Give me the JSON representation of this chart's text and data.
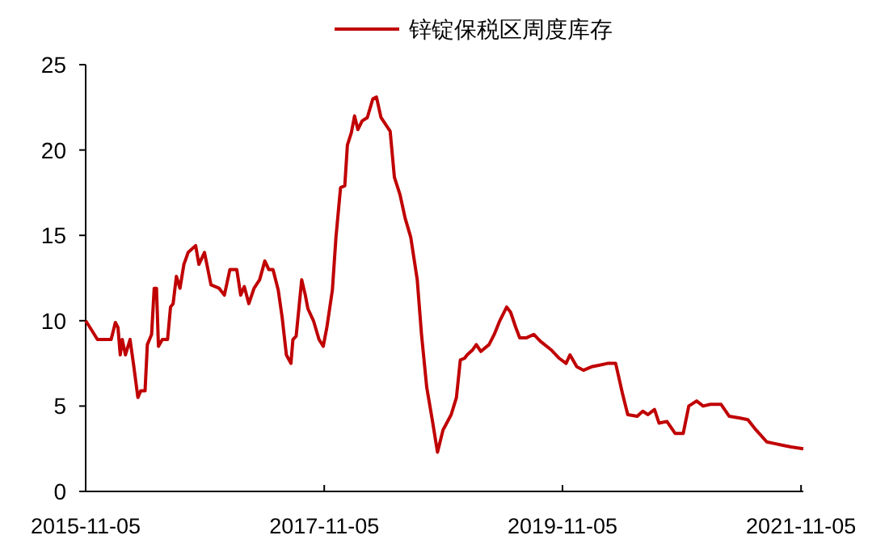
{
  "chart_data": {
    "type": "line",
    "legend": "top",
    "ylim": [
      0,
      25
    ],
    "yticks": [
      0,
      5,
      10,
      15,
      20,
      25
    ],
    "xlim": [
      "2015-11-05",
      "2021-11-12"
    ],
    "xticks": [
      "2015-11-05",
      "2017-11-05",
      "2019-11-05",
      "2021-11-05"
    ],
    "x": [
      "2015-11-05",
      "2015-11-25",
      "2015-12-11",
      "2016-01-22",
      "2016-01-30",
      "2016-02-04",
      "2016-02-12",
      "2016-02-19",
      "2016-02-25",
      "2016-03-06",
      "2016-03-20",
      "2016-03-31",
      "2016-04-13",
      "2016-04-22",
      "2016-05-05",
      "2016-05-12",
      "2016-05-25",
      "2016-06-02",
      "2016-06-09",
      "2016-06-15",
      "2016-06-27",
      "2016-07-13",
      "2016-07-22",
      "2016-07-30",
      "2016-08-09",
      "2016-08-20",
      "2016-09-01",
      "2016-09-14",
      "2016-10-07",
      "2016-10-17",
      "2016-11-03",
      "2016-11-23",
      "2016-12-18",
      "2017-01-03",
      "2017-01-20",
      "2017-02-10",
      "2017-02-22",
      "2017-03-05",
      "2017-03-19",
      "2017-04-04",
      "2017-04-21",
      "2017-05-07",
      "2017-05-19",
      "2017-06-01",
      "2017-06-17",
      "2017-06-29",
      "2017-07-12",
      "2017-07-26",
      "2017-08-01",
      "2017-08-11",
      "2017-08-28",
      "2017-09-08",
      "2017-09-16",
      "2017-10-03",
      "2017-10-20",
      "2017-11-02",
      "2017-11-13",
      "2017-11-30",
      "2017-12-11",
      "2017-12-25",
      "2018-01-07",
      "2018-01-15",
      "2018-01-27",
      "2018-02-06",
      "2018-02-16",
      "2018-03-01",
      "2018-03-17",
      "2018-04-03",
      "2018-04-14",
      "2018-04-28",
      "2018-05-26",
      "2018-06-08",
      "2018-06-25",
      "2018-07-11",
      "2018-07-28",
      "2018-08-17",
      "2018-08-30",
      "2018-09-15",
      "2018-10-02",
      "2018-10-18",
      "2018-11-04",
      "2018-11-29",
      "2018-12-15",
      "2018-12-27",
      "2019-01-09",
      "2019-01-17",
      "2019-02-03",
      "2019-02-14",
      "2019-02-28",
      "2019-03-25",
      "2019-04-10",
      "2019-04-27",
      "2019-05-18",
      "2019-05-30",
      "2019-06-15",
      "2019-06-27",
      "2019-07-18",
      "2019-08-09",
      "2019-08-29",
      "2019-10-01",
      "2019-10-26",
      "2019-11-16",
      "2019-11-28",
      "2019-12-19",
      "2020-01-08",
      "2020-02-02",
      "2020-02-27",
      "2020-03-22",
      "2020-04-16",
      "2020-05-06",
      "2020-05-23",
      "2020-06-21",
      "2020-07-08",
      "2020-07-24",
      "2020-08-13",
      "2020-08-27",
      "2020-09-20",
      "2020-10-15",
      "2020-11-09",
      "2020-11-26",
      "2020-12-20",
      "2021-01-09",
      "2021-01-31",
      "2021-03-05",
      "2021-03-30",
      "2021-05-02",
      "2021-05-26",
      "2021-06-20",
      "2021-07-23",
      "2021-08-17",
      "2021-09-11",
      "2021-10-06",
      "2021-11-12"
    ],
    "series": [
      {
        "name": "锌锭保税区周度库存",
        "color": "#c00000",
        "values": [
          10.0,
          9.4,
          8.9,
          8.9,
          9.5,
          9.9,
          9.6,
          8.0,
          8.9,
          8.0,
          8.9,
          7.4,
          5.5,
          5.9,
          5.9,
          8.6,
          9.2,
          11.9,
          11.9,
          8.5,
          8.9,
          8.9,
          10.8,
          11.0,
          12.6,
          11.9,
          13.3,
          14.0,
          14.4,
          13.3,
          14.0,
          12.1,
          11.9,
          11.5,
          13.0,
          13.0,
          11.5,
          12.0,
          11.0,
          11.9,
          12.4,
          13.5,
          13.0,
          13.0,
          11.8,
          10.2,
          8.0,
          7.5,
          8.9,
          9.1,
          12.4,
          11.5,
          10.7,
          10.0,
          8.9,
          8.5,
          9.6,
          11.8,
          14.9,
          17.8,
          17.9,
          20.3,
          21.0,
          22.0,
          21.2,
          21.7,
          21.9,
          23.0,
          23.1,
          21.9,
          21.1,
          18.4,
          17.4,
          16.0,
          14.9,
          12.4,
          9.2,
          6.1,
          4.2,
          2.3,
          3.6,
          4.5,
          5.5,
          7.7,
          7.8,
          8.0,
          8.3,
          8.6,
          8.2,
          8.6,
          9.2,
          10.0,
          10.8,
          10.5,
          9.6,
          9.0,
          9.0,
          9.2,
          8.8,
          8.3,
          7.8,
          7.5,
          8.0,
          7.3,
          7.1,
          7.3,
          7.4,
          7.5,
          7.5,
          5.8,
          4.5,
          4.4,
          4.7,
          4.5,
          4.8,
          4.0,
          4.1,
          3.4,
          3.4,
          5.0,
          5.3,
          5.0,
          5.1,
          5.1,
          4.4,
          4.3,
          4.2,
          3.6,
          2.9,
          2.8,
          2.7,
          2.6,
          2.5
        ]
      }
    ]
  }
}
